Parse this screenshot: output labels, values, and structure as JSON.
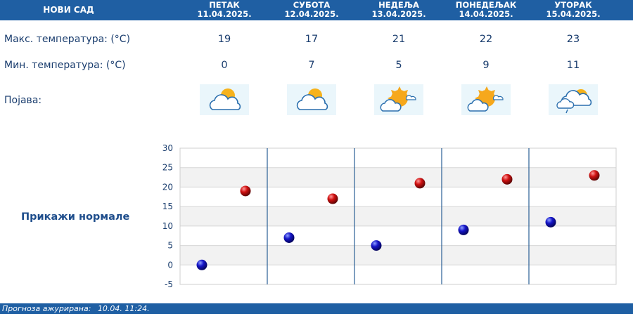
{
  "header": {
    "city": "НОВИ САД",
    "days": [
      {
        "name": "ПЕТАК",
        "date": "11.04.2025."
      },
      {
        "name": "СУБОТА",
        "date": "12.04.2025."
      },
      {
        "name": "НЕДЕЉА",
        "date": "13.04.2025."
      },
      {
        "name": "ПОНЕДЕЉАК",
        "date": "14.04.2025."
      },
      {
        "name": "УТОРАК",
        "date": "15.04.2025."
      }
    ]
  },
  "rows": {
    "max_label": "Макс. температура: (°C)",
    "min_label": "Мин. температура: (°C)",
    "weather_label": "Појава:",
    "max": [
      "19",
      "17",
      "21",
      "22",
      "23"
    ],
    "min": [
      "0",
      "7",
      "5",
      "9",
      "11"
    ],
    "icons": [
      "partly-cloudy-icon",
      "partly-cloudy-icon",
      "mostly-sunny-icon",
      "mostly-sunny-icon",
      "cloudy-rain-icon"
    ]
  },
  "normals_link": "Прикажи нормале",
  "chart_data": {
    "type": "scatter",
    "categories": [
      "11.04.2025.",
      "12.04.2025.",
      "13.04.2025.",
      "14.04.2025.",
      "15.04.2025."
    ],
    "series": [
      {
        "values": [
          0,
          7,
          5,
          9,
          11
        ],
        "color": "#1010c8"
      },
      {
        "values": [
          19,
          17,
          21,
          22,
          23
        ],
        "color": "#d01010"
      }
    ],
    "ylim": [
      -5,
      30
    ],
    "yticks": [
      "30",
      "25",
      "20",
      "15",
      "10",
      "5",
      "0",
      "-5"
    ],
    "grid": true
  },
  "footer": {
    "updated_label": "Прогноза ажурирана:",
    "updated_value": "10.04. 11:24."
  }
}
